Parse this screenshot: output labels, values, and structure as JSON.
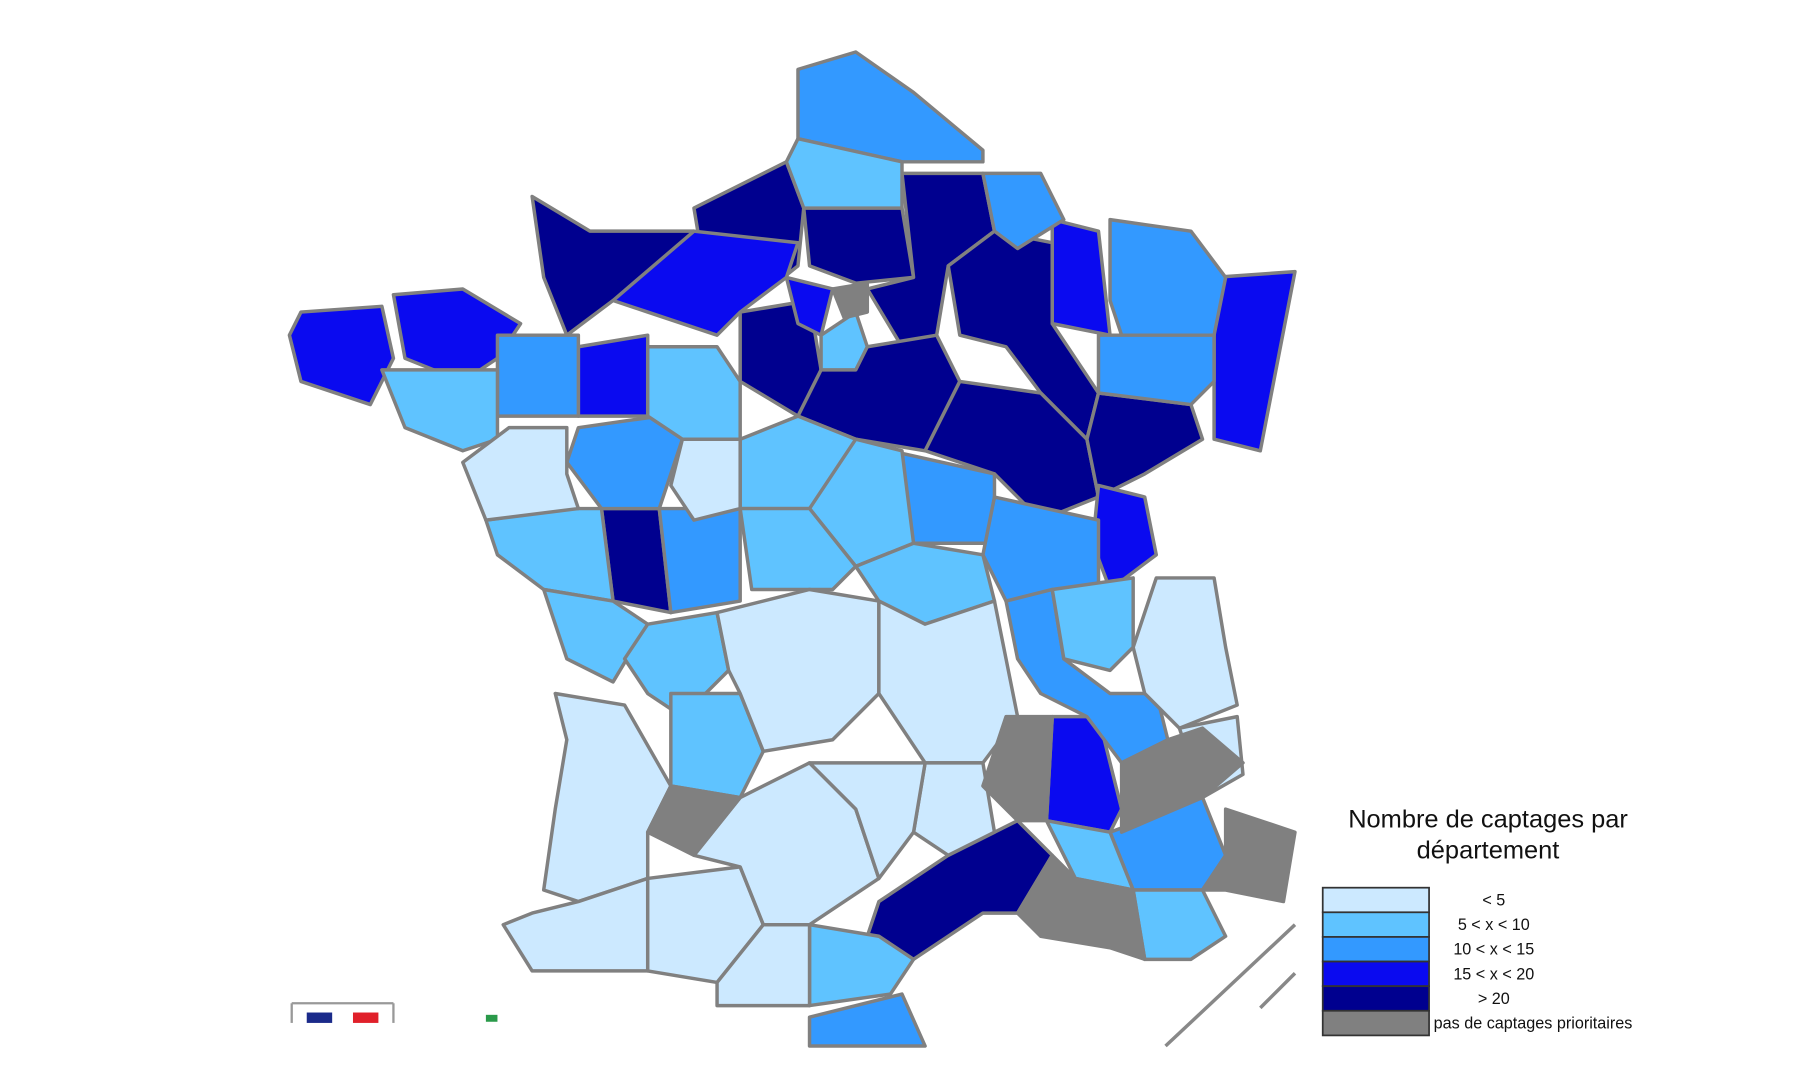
{
  "legend": {
    "title_lines": [
      "Nombre de captages par",
      "département"
    ],
    "items": [
      {
        "label": "< 5",
        "color": "#cce9ff"
      },
      {
        "label": "5 < x < 10",
        "color": "#5fc3ff"
      },
      {
        "label": "10 < x < 15",
        "color": "#3399ff"
      },
      {
        "label": "15 < x < 20",
        "color": "#0a0af0"
      },
      {
        "label": "> 20",
        "color": "#00008f"
      },
      {
        "label": "pas de captages prioritaires",
        "color": "#808080"
      }
    ]
  }
}
